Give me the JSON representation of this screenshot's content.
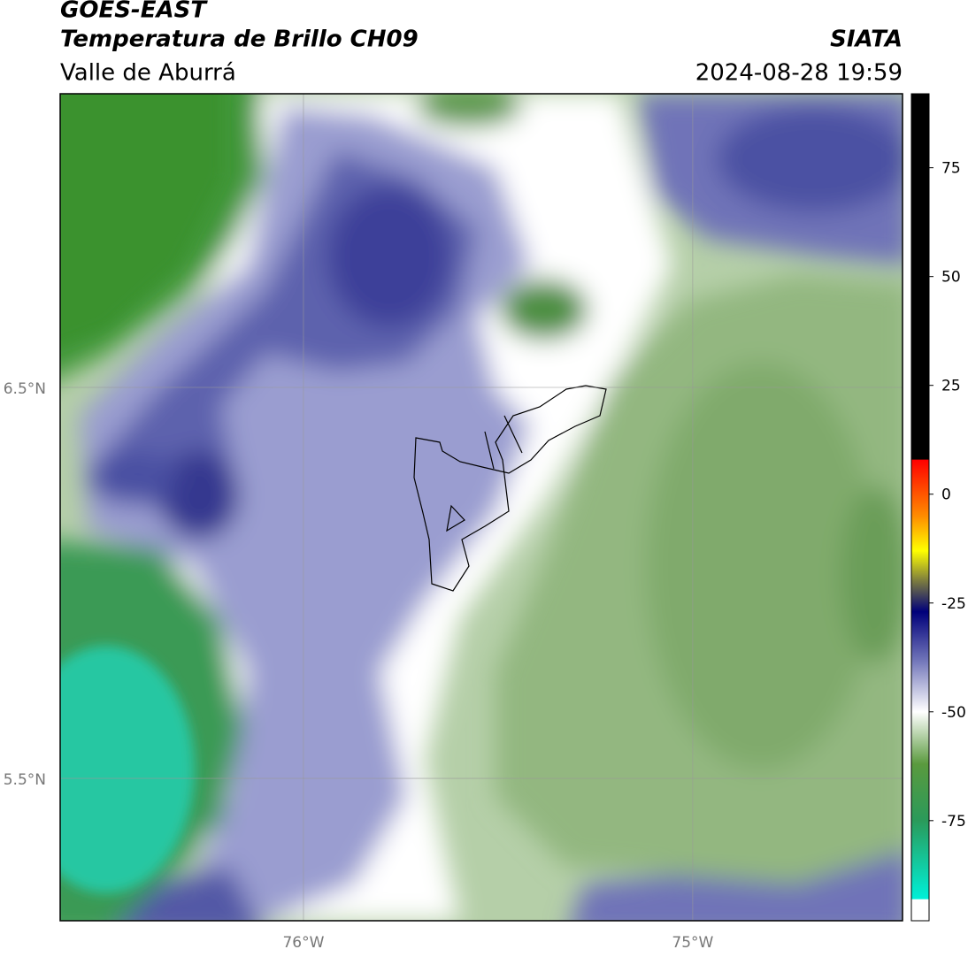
{
  "header": {
    "title": "GOES-EAST",
    "subtitle": "Temperatura de Brillo CH09",
    "region": "Valle de Aburrá",
    "source": "SIATA",
    "timestamp": "2024-08-28 19:59"
  },
  "map": {
    "lon_range": [
      -76.625,
      -74.461
    ],
    "lat_range": [
      5.136,
      7.251
    ],
    "lat_ticks": [
      {
        "value": 6.5,
        "label": "6.5°N"
      },
      {
        "value": 5.5,
        "label": "5.5°N"
      }
    ],
    "lon_ticks": [
      {
        "value": -76,
        "label": "76°W"
      },
      {
        "value": -75,
        "label": "75°W"
      }
    ]
  },
  "colorbar": {
    "range": [
      -98,
      92
    ],
    "ticks": [
      75,
      50,
      25,
      0,
      -25,
      -50,
      -75
    ],
    "stops": [
      {
        "value": 92,
        "color": "#000000"
      },
      {
        "value": 8,
        "color": "#000000"
      },
      {
        "value": 7.9,
        "color": "#ff0000"
      },
      {
        "value": -5,
        "color": "#ff8c00"
      },
      {
        "value": -13,
        "color": "#ffff00"
      },
      {
        "value": -20,
        "color": "#7a7a40"
      },
      {
        "value": -27,
        "color": "#00007a"
      },
      {
        "value": -38,
        "color": "#6f73b8"
      },
      {
        "value": -50,
        "color": "#ffffff"
      },
      {
        "value": -62,
        "color": "#5a9a3e"
      },
      {
        "value": -75,
        "color": "#2a9a5a"
      },
      {
        "value": -93,
        "color": "#00f0d8"
      },
      {
        "value": -93.1,
        "color": "#ffffff"
      },
      {
        "value": -98,
        "color": "#ffffff"
      }
    ]
  }
}
